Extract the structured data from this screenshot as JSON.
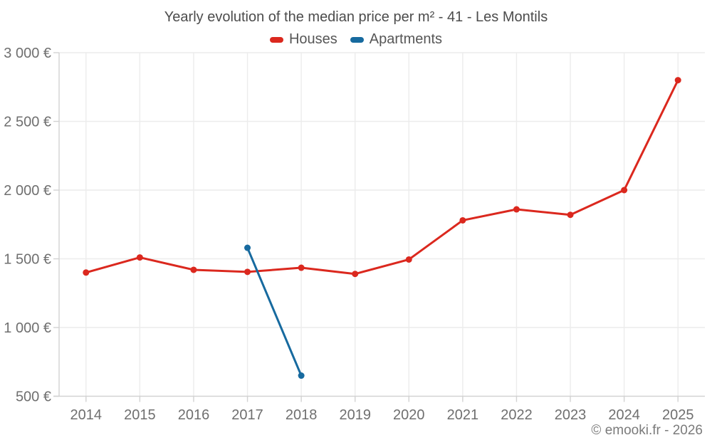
{
  "chart_data": {
    "type": "line",
    "title": "Yearly evolution of the median price per m² - 41 - Les Montils",
    "categories": [
      "2014",
      "2015",
      "2016",
      "2017",
      "2018",
      "2019",
      "2020",
      "2021",
      "2022",
      "2023",
      "2024",
      "2025"
    ],
    "series": [
      {
        "name": "Houses",
        "color": "#db281e",
        "values": [
          1400,
          1510,
          1420,
          1405,
          1435,
          1390,
          1495,
          1780,
          1860,
          1820,
          2000,
          2800
        ]
      },
      {
        "name": "Apartments",
        "color": "#176a9f",
        "values": [
          null,
          null,
          null,
          1580,
          650,
          null,
          null,
          null,
          null,
          null,
          null,
          null
        ]
      }
    ],
    "ylim": [
      500,
      3000
    ],
    "y_ticks": [
      {
        "value": 500,
        "label": "500 €"
      },
      {
        "value": 1000,
        "label": "1 000 €"
      },
      {
        "value": 1500,
        "label": "1 500 €"
      },
      {
        "value": 2000,
        "label": "2 000 €"
      },
      {
        "value": 2500,
        "label": "2 500 €"
      },
      {
        "value": 3000,
        "label": "3 000 €"
      }
    ],
    "grid": true,
    "legend_position": "top",
    "marker_radius": 4.5,
    "line_width": 3
  },
  "footer": {
    "credit": "© emooki.fr - 2026"
  },
  "colors": {
    "background": "#ffffff",
    "grid": "#ececec",
    "axis": "#d2d2d2",
    "axis_label": "#6f6f6f",
    "title": "#4c4c4c",
    "legend_label": "#565656",
    "footer": "#7b7b7b"
  }
}
